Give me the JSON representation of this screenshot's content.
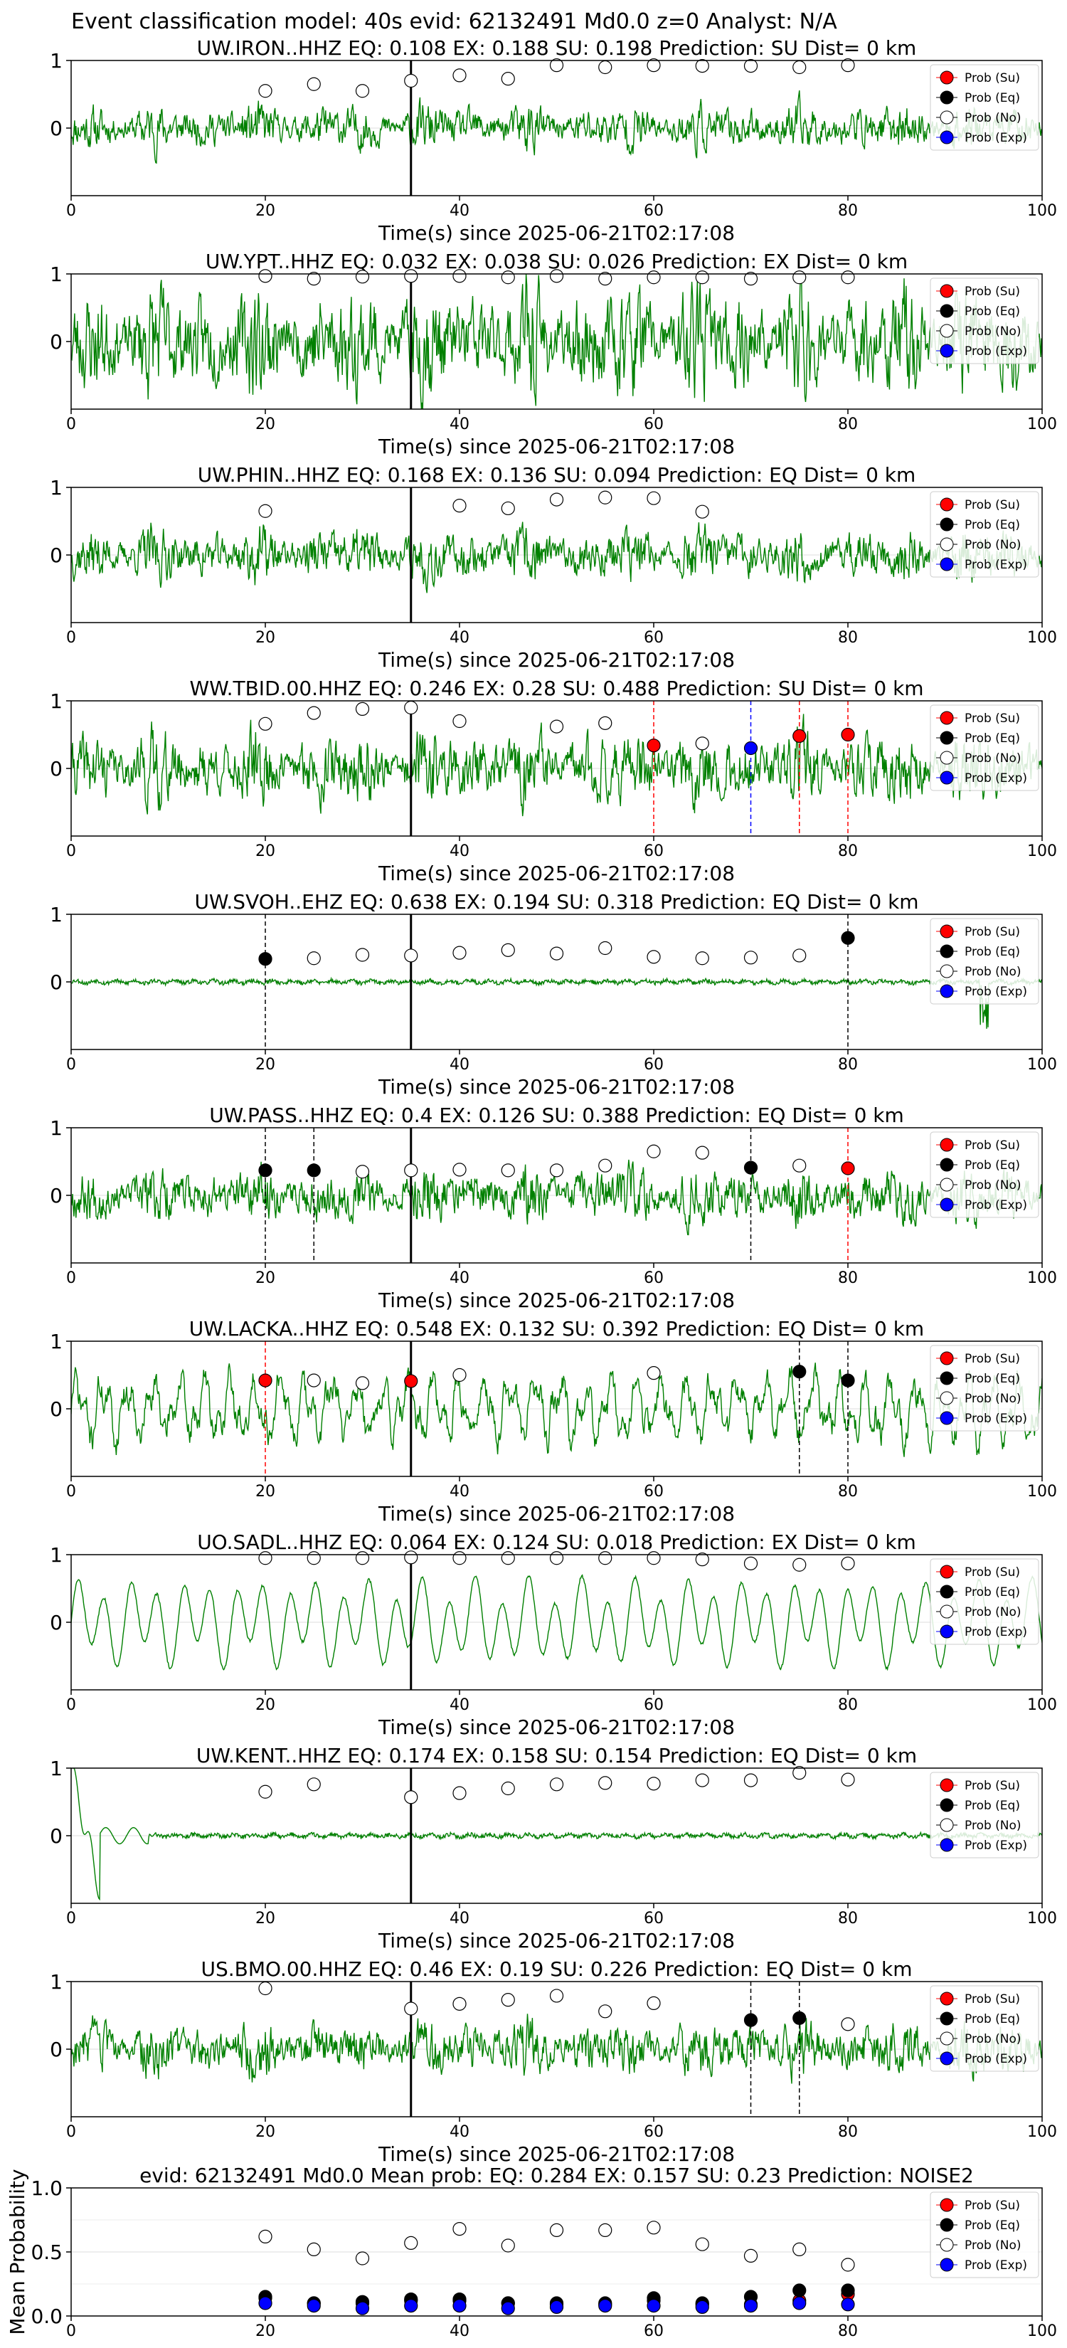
{
  "figure": {
    "title": "Event classification model: 40s evid: 62132491 Md0.0 z=0 Analyst: N/A"
  },
  "legend": {
    "entries": [
      {
        "label": "Prob (Su)",
        "color": "#ff0000",
        "filled": true
      },
      {
        "label": "Prob (Eq)",
        "color": "#000000",
        "filled": true
      },
      {
        "label": "Prob (No)",
        "color": "#ffffff",
        "filled": false
      },
      {
        "label": "Prob (Exp)",
        "color": "#0000ff",
        "filled": true
      }
    ]
  },
  "colors": {
    "waveform": "#008000",
    "origin_line": "#000000",
    "su_pick": "#ff0000",
    "eq_pick": "#000000",
    "exp_pick": "#0000ff",
    "grid": "#dddddd"
  },
  "chart_data": [
    {
      "type": "line",
      "title": "UW.IRON..HHZ   EQ: 0.108  EX: 0.188  SU: 0.198   Prediction: SU    Dist= 0 km",
      "xlabel": "Time(s) since 2025-06-21T02:17:08",
      "xlim": [
        0,
        100
      ],
      "ylim": [
        -1,
        1
      ],
      "xticks": [
        0,
        20,
        40,
        60,
        80,
        100
      ],
      "yticks": [
        0,
        1
      ],
      "origin_time": 35,
      "waveform": {
        "amplitude": 0.25,
        "style": "noise",
        "seed": 11
      },
      "points": {
        "No": [
          [
            20,
            0.55
          ],
          [
            25,
            0.65
          ],
          [
            30,
            0.55
          ],
          [
            35,
            0.7
          ],
          [
            40,
            0.78
          ],
          [
            45,
            0.73
          ],
          [
            50,
            0.93
          ],
          [
            55,
            0.9
          ],
          [
            60,
            0.93
          ],
          [
            65,
            0.92
          ],
          [
            70,
            0.92
          ],
          [
            75,
            0.9
          ],
          [
            80,
            0.93
          ]
        ]
      },
      "picks": []
    },
    {
      "type": "line",
      "title": "UW.YPT..HHZ   EQ: 0.032  EX: 0.038  SU: 0.026   Prediction: EX    Dist= 0 km",
      "xlabel": "Time(s) since 2025-06-21T02:17:08",
      "xlim": [
        0,
        100
      ],
      "ylim": [
        -1,
        1
      ],
      "xticks": [
        0,
        20,
        40,
        60,
        80,
        100
      ],
      "yticks": [
        0,
        1
      ],
      "origin_time": 35,
      "waveform": {
        "amplitude": 0.6,
        "style": "noise",
        "seed": 23
      },
      "points": {
        "No": [
          [
            20,
            0.97
          ],
          [
            25,
            0.93
          ],
          [
            30,
            0.96
          ],
          [
            35,
            0.97
          ],
          [
            40,
            0.97
          ],
          [
            45,
            0.95
          ],
          [
            50,
            0.97
          ],
          [
            55,
            0.93
          ],
          [
            60,
            0.95
          ],
          [
            65,
            0.95
          ],
          [
            70,
            0.93
          ],
          [
            75,
            0.95
          ],
          [
            80,
            0.95
          ]
        ]
      },
      "picks": []
    },
    {
      "type": "line",
      "title": "UW.PHIN..HHZ   EQ: 0.168  EX: 0.136  SU: 0.094   Prediction: EQ    Dist= 0 km",
      "xlabel": "Time(s) since 2025-06-21T02:17:08",
      "xlim": [
        0,
        100
      ],
      "ylim": [
        -1,
        1
      ],
      "xticks": [
        0,
        20,
        40,
        60,
        80,
        100
      ],
      "yticks": [
        0,
        1
      ],
      "origin_time": 35,
      "waveform": {
        "amplitude": 0.3,
        "style": "noise",
        "seed": 37
      },
      "points": {
        "No": [
          [
            20,
            0.65
          ],
          [
            40,
            0.73
          ],
          [
            45,
            0.69
          ],
          [
            50,
            0.82
          ],
          [
            55,
            0.85
          ],
          [
            60,
            0.84
          ],
          [
            65,
            0.64
          ]
        ]
      },
      "picks": []
    },
    {
      "type": "line",
      "title": "WW.TBID.00.HHZ   EQ: 0.246  EX: 0.28  SU: 0.488   Prediction: SU    Dist= 0 km",
      "xlabel": "Time(s) since 2025-06-21T02:17:08",
      "xlim": [
        0,
        100
      ],
      "ylim": [
        -1,
        1
      ],
      "xticks": [
        0,
        20,
        40,
        60,
        80,
        100
      ],
      "yticks": [
        0,
        1
      ],
      "origin_time": 35,
      "waveform": {
        "amplitude": 0.4,
        "style": "noise",
        "seed": 41
      },
      "points": {
        "No": [
          [
            20,
            0.66
          ],
          [
            25,
            0.82
          ],
          [
            30,
            0.88
          ],
          [
            35,
            0.9
          ],
          [
            40,
            0.7
          ],
          [
            50,
            0.62
          ],
          [
            55,
            0.67
          ],
          [
            65,
            0.37
          ]
        ],
        "Su": [
          [
            60,
            0.34
          ],
          [
            75,
            0.48
          ],
          [
            80,
            0.5
          ]
        ],
        "Exp": [
          [
            70,
            0.3
          ]
        ]
      },
      "picks": [
        {
          "x": 60,
          "kind": "su_pick"
        },
        {
          "x": 70,
          "kind": "exp_pick"
        },
        {
          "x": 75,
          "kind": "su_pick"
        },
        {
          "x": 80,
          "kind": "su_pick"
        }
      ]
    },
    {
      "type": "line",
      "title": "UW.SVOH..EHZ   EQ: 0.638  EX: 0.194  SU: 0.318   Prediction: EQ    Dist= 0 km",
      "xlabel": "Time(s) since 2025-06-21T02:17:08",
      "xlim": [
        0,
        100
      ],
      "ylim": [
        -1,
        1
      ],
      "xticks": [
        0,
        20,
        40,
        60,
        80,
        100
      ],
      "yticks": [
        0,
        1
      ],
      "origin_time": 35,
      "waveform": {
        "amplitude": 0.05,
        "style": "quiet",
        "seed": 53
      },
      "points": {
        "No": [
          [
            25,
            0.35
          ],
          [
            30,
            0.4
          ],
          [
            35,
            0.39
          ],
          [
            40,
            0.43
          ],
          [
            45,
            0.47
          ],
          [
            50,
            0.42
          ],
          [
            55,
            0.5
          ],
          [
            60,
            0.37
          ],
          [
            65,
            0.35
          ],
          [
            70,
            0.36
          ],
          [
            75,
            0.39
          ]
        ],
        "Eq": [
          [
            20,
            0.34
          ],
          [
            80,
            0.65
          ]
        ]
      },
      "picks": [
        {
          "x": 20,
          "kind": "eq_pick"
        },
        {
          "x": 80,
          "kind": "eq_pick"
        }
      ]
    },
    {
      "type": "line",
      "title": "UW.PASS..HHZ   EQ: 0.4  EX: 0.126  SU: 0.388   Prediction: EQ    Dist= 0 km",
      "xlabel": "Time(s) since 2025-06-21T02:17:08",
      "xlim": [
        0,
        100
      ],
      "ylim": [
        -1,
        1
      ],
      "xticks": [
        0,
        20,
        40,
        60,
        80,
        100
      ],
      "yticks": [
        0,
        1
      ],
      "origin_time": 35,
      "waveform": {
        "amplitude": 0.3,
        "style": "noise",
        "seed": 67
      },
      "points": {
        "No": [
          [
            30,
            0.35
          ],
          [
            35,
            0.37
          ],
          [
            40,
            0.38
          ],
          [
            45,
            0.37
          ],
          [
            50,
            0.37
          ],
          [
            55,
            0.44
          ],
          [
            60,
            0.65
          ],
          [
            65,
            0.63
          ],
          [
            75,
            0.44
          ]
        ],
        "Eq": [
          [
            20,
            0.37
          ],
          [
            25,
            0.37
          ],
          [
            70,
            0.41
          ]
        ],
        "Su": [
          [
            80,
            0.4
          ]
        ]
      },
      "picks": [
        {
          "x": 20,
          "kind": "eq_pick"
        },
        {
          "x": 25,
          "kind": "eq_pick"
        },
        {
          "x": 70,
          "kind": "eq_pick"
        },
        {
          "x": 80,
          "kind": "su_pick"
        }
      ]
    },
    {
      "type": "line",
      "title": "UW.LACKA..HHZ   EQ: 0.548  EX: 0.132  SU: 0.392   Prediction: EQ    Dist= 0 km",
      "xlabel": "Time(s) since 2025-06-21T02:17:08",
      "xlim": [
        0,
        100
      ],
      "ylim": [
        -1,
        1
      ],
      "xticks": [
        0,
        20,
        40,
        60,
        80,
        100
      ],
      "yticks": [
        0,
        1
      ],
      "origin_time": 35,
      "waveform": {
        "amplitude": 0.35,
        "style": "wavy",
        "seed": 71
      },
      "points": {
        "No": [
          [
            25,
            0.42
          ],
          [
            30,
            0.38
          ],
          [
            40,
            0.5
          ],
          [
            60,
            0.53
          ]
        ],
        "Su": [
          [
            20,
            0.42
          ],
          [
            35,
            0.41
          ]
        ],
        "Eq": [
          [
            75,
            0.55
          ],
          [
            80,
            0.42
          ]
        ]
      },
      "picks": [
        {
          "x": 20,
          "kind": "su_pick"
        },
        {
          "x": 75,
          "kind": "eq_pick"
        },
        {
          "x": 80,
          "kind": "eq_pick"
        }
      ]
    },
    {
      "type": "line",
      "title": "UO.SADL..HHZ   EQ: 0.064  EX: 0.124  SU: 0.018   Prediction: EX    Dist= 0 km",
      "xlabel": "Time(s) since 2025-06-21T02:17:08",
      "xlim": [
        0,
        100
      ],
      "ylim": [
        -1,
        1
      ],
      "xticks": [
        0,
        20,
        40,
        60,
        80,
        100
      ],
      "yticks": [
        0,
        1
      ],
      "origin_time": 35,
      "waveform": {
        "amplitude": 0.6,
        "style": "sine",
        "seed": 83
      },
      "points": {
        "No": [
          [
            20,
            0.95
          ],
          [
            25,
            0.95
          ],
          [
            30,
            0.95
          ],
          [
            35,
            0.96
          ],
          [
            40,
            0.95
          ],
          [
            45,
            0.95
          ],
          [
            50,
            0.95
          ],
          [
            55,
            0.95
          ],
          [
            60,
            0.95
          ],
          [
            65,
            0.93
          ],
          [
            70,
            0.87
          ],
          [
            75,
            0.85
          ],
          [
            80,
            0.87
          ]
        ]
      },
      "picks": []
    },
    {
      "type": "line",
      "title": "UW.KENT..HHZ   EQ: 0.174  EX: 0.158  SU: 0.154   Prediction: EQ    Dist= 0 km",
      "xlabel": "Time(s) since 2025-06-21T02:17:08",
      "xlim": [
        0,
        100
      ],
      "ylim": [
        -1,
        1
      ],
      "xticks": [
        0,
        20,
        40,
        60,
        80,
        100
      ],
      "yticks": [
        0,
        1
      ],
      "origin_time": 35,
      "waveform": {
        "amplitude": 0.05,
        "style": "quiet",
        "seed": 97
      },
      "points": {
        "No": [
          [
            20,
            0.65
          ],
          [
            25,
            0.76
          ],
          [
            35,
            0.57
          ],
          [
            40,
            0.63
          ],
          [
            45,
            0.7
          ],
          [
            50,
            0.76
          ],
          [
            55,
            0.78
          ],
          [
            60,
            0.77
          ],
          [
            65,
            0.82
          ],
          [
            70,
            0.82
          ],
          [
            75,
            0.93
          ],
          [
            80,
            0.83
          ]
        ]
      },
      "picks": []
    },
    {
      "type": "line",
      "title": "US.BMO.00.HHZ   EQ: 0.46  EX: 0.19  SU: 0.226   Prediction: EQ    Dist= 0 km",
      "xlabel": "Time(s) since 2025-06-21T02:17:08",
      "xlim": [
        0,
        100
      ],
      "ylim": [
        -1,
        1
      ],
      "xticks": [
        0,
        20,
        40,
        60,
        80,
        100
      ],
      "yticks": [
        0,
        1
      ],
      "origin_time": 35,
      "waveform": {
        "amplitude": 0.3,
        "style": "noise",
        "seed": 103
      },
      "points": {
        "No": [
          [
            20,
            0.9
          ],
          [
            35,
            0.6
          ],
          [
            40,
            0.67
          ],
          [
            45,
            0.73
          ],
          [
            50,
            0.79
          ],
          [
            55,
            0.56
          ],
          [
            60,
            0.68
          ],
          [
            80,
            0.37
          ]
        ],
        "Eq": [
          [
            70,
            0.43
          ],
          [
            75,
            0.46
          ]
        ]
      },
      "picks": [
        {
          "x": 70,
          "kind": "eq_pick"
        },
        {
          "x": 75,
          "kind": "eq_pick"
        }
      ]
    },
    {
      "type": "scatter",
      "title": "evid: 62132491  Md0.0   Mean prob:   EQ: 0.284  EX: 0.157  SU: 0.23   Prediction: NOISE2",
      "ylabel": "Mean Probability",
      "xlim": [
        0,
        100
      ],
      "ylim": [
        0,
        1
      ],
      "xticks": [
        0,
        20,
        40,
        60,
        80,
        100
      ],
      "yticks": [
        0.0,
        0.5,
        1.0
      ],
      "ytick_labels": [
        "0.0",
        "0.5",
        "1.0"
      ],
      "points": {
        "No": [
          [
            20,
            0.62
          ],
          [
            25,
            0.52
          ],
          [
            30,
            0.45
          ],
          [
            35,
            0.57
          ],
          [
            40,
            0.68
          ],
          [
            45,
            0.55
          ],
          [
            50,
            0.67
          ],
          [
            55,
            0.67
          ],
          [
            60,
            0.69
          ],
          [
            65,
            0.56
          ],
          [
            70,
            0.47
          ],
          [
            75,
            0.52
          ],
          [
            80,
            0.4
          ]
        ],
        "Su": [
          [
            20,
            0.14
          ],
          [
            25,
            0.1
          ],
          [
            30,
            0.1
          ],
          [
            35,
            0.12
          ],
          [
            40,
            0.12
          ],
          [
            45,
            0.1
          ],
          [
            50,
            0.09
          ],
          [
            55,
            0.09
          ],
          [
            60,
            0.12
          ],
          [
            65,
            0.09
          ],
          [
            70,
            0.09
          ],
          [
            75,
            0.12
          ],
          [
            80,
            0.17
          ]
        ],
        "Eq": [
          [
            20,
            0.15
          ],
          [
            25,
            0.1
          ],
          [
            30,
            0.11
          ],
          [
            35,
            0.13
          ],
          [
            40,
            0.13
          ],
          [
            45,
            0.1
          ],
          [
            50,
            0.1
          ],
          [
            55,
            0.1
          ],
          [
            60,
            0.14
          ],
          [
            65,
            0.1
          ],
          [
            70,
            0.15
          ],
          [
            75,
            0.2
          ],
          [
            80,
            0.2
          ]
        ],
        "Exp": [
          [
            20,
            0.1
          ],
          [
            25,
            0.08
          ],
          [
            30,
            0.06
          ],
          [
            35,
            0.08
          ],
          [
            40,
            0.08
          ],
          [
            45,
            0.06
          ],
          [
            50,
            0.07
          ],
          [
            55,
            0.08
          ],
          [
            60,
            0.08
          ],
          [
            65,
            0.07
          ],
          [
            70,
            0.08
          ],
          [
            75,
            0.1
          ],
          [
            80,
            0.09
          ]
        ]
      }
    }
  ]
}
